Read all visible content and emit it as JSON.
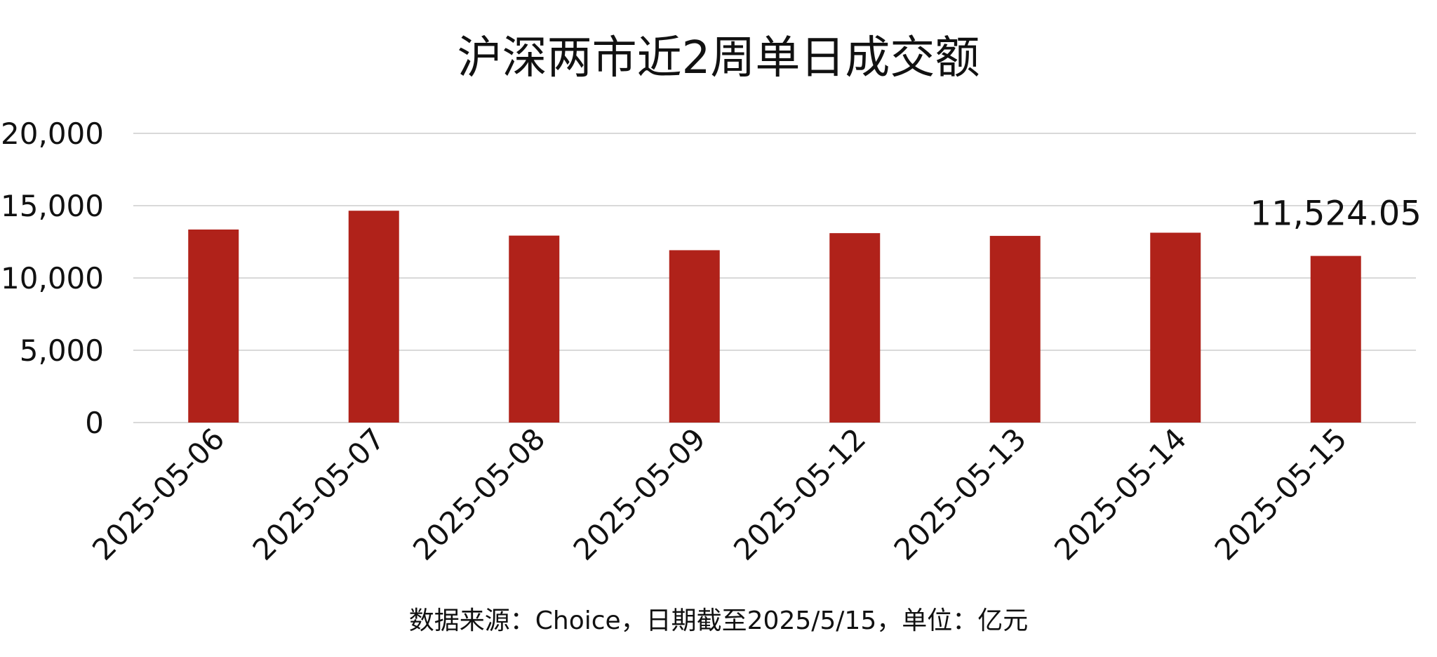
{
  "chart_data": {
    "type": "bar",
    "title": "沪深两市近2周单日成交额",
    "categories": [
      "2025-05-06",
      "2025-05-07",
      "2025-05-08",
      "2025-05-09",
      "2025-05-12",
      "2025-05-13",
      "2025-05-14",
      "2025-05-15"
    ],
    "values": [
      13350,
      14650,
      12930,
      11920,
      13100,
      12910,
      13130,
      11524.05
    ],
    "ylim": [
      0,
      20000
    ],
    "yticks": [
      "0",
      "5,000",
      "10,000",
      "15,000",
      "20,000"
    ],
    "ytick_values": [
      0,
      5000,
      10000,
      15000,
      20000
    ],
    "xlabel": "",
    "ylabel": "",
    "grid": true,
    "legend": "none",
    "bar_color": "#b0221a",
    "grid_color": "#d9d9d9",
    "data_labels": [
      {
        "category_index": 7,
        "text": "11,524.05"
      }
    ],
    "source_note": "数据来源：Choice，日期截至2025/5/15，单位：亿元"
  }
}
